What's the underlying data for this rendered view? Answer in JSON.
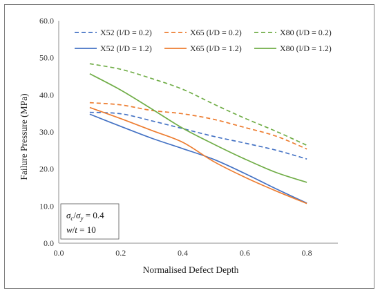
{
  "chart_data": {
    "type": "line",
    "title": "",
    "xlabel": "Normalised Defect Depth",
    "ylabel": "Failure Pressure (MPa)",
    "xlim": [
      0.0,
      0.9
    ],
    "ylim": [
      0.0,
      60.0
    ],
    "x_ticks": [
      "0.0",
      "0.2",
      "0.4",
      "0.6",
      "0.8"
    ],
    "y_ticks": [
      "0.0",
      "10.0",
      "20.0",
      "30.0",
      "40.0",
      "50.0",
      "60.0"
    ],
    "grid": false,
    "legend_position": "top",
    "series": [
      {
        "name": "X52 (l/D = 0.2)",
        "color": "#4472C4",
        "dash": "dashed",
        "x": [
          0.1,
          0.2,
          0.3,
          0.4,
          0.5,
          0.6,
          0.7,
          0.8
        ],
        "y": [
          35.3,
          34.9,
          33.0,
          30.9,
          28.8,
          27.0,
          25.1,
          22.7
        ]
      },
      {
        "name": "X65 (l/D = 0.2)",
        "color": "#ED7D31",
        "dash": "dashed",
        "x": [
          0.1,
          0.2,
          0.3,
          0.4,
          0.5,
          0.6,
          0.7,
          0.8
        ],
        "y": [
          37.9,
          37.3,
          35.8,
          34.9,
          33.4,
          31.2,
          28.9,
          25.4
        ]
      },
      {
        "name": "X80 (l/D = 0.2)",
        "color": "#70AD47",
        "dash": "dashed",
        "x": [
          0.1,
          0.2,
          0.3,
          0.4,
          0.5,
          0.6,
          0.7,
          0.8
        ],
        "y": [
          48.4,
          46.9,
          44.4,
          41.5,
          37.5,
          33.7,
          30.2,
          26.4
        ]
      },
      {
        "name": "X52 (l/D = 1.2)",
        "color": "#4472C4",
        "dash": "solid",
        "x": [
          0.1,
          0.2,
          0.3,
          0.4,
          0.5,
          0.6,
          0.7,
          0.8
        ],
        "y": [
          34.8,
          31.5,
          28.3,
          25.5,
          22.6,
          18.8,
          14.7,
          10.8
        ]
      },
      {
        "name": "X65 (l/D = 1.2)",
        "color": "#ED7D31",
        "dash": "solid",
        "x": [
          0.1,
          0.2,
          0.3,
          0.4,
          0.5,
          0.6,
          0.7,
          0.8
        ],
        "y": [
          36.6,
          33.6,
          30.4,
          27.2,
          22.0,
          17.8,
          14.1,
          10.7
        ]
      },
      {
        "name": "X80 (l/D = 1.2)",
        "color": "#70AD47",
        "dash": "solid",
        "x": [
          0.1,
          0.2,
          0.3,
          0.4,
          0.5,
          0.6,
          0.7,
          0.8
        ],
        "y": [
          45.7,
          41.3,
          36.2,
          31.0,
          26.7,
          22.7,
          19.1,
          16.4
        ]
      }
    ],
    "annotation": {
      "line1": "σc/σy = 0.4",
      "line1_ratio_value": "0.4",
      "line2": "w/t = 10",
      "line2_value": "10"
    }
  }
}
